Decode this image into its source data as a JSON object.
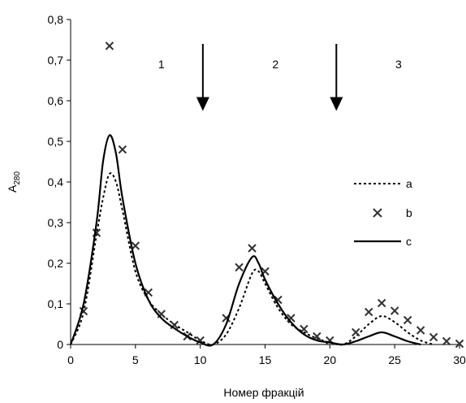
{
  "chart_data": {
    "type": "line",
    "xlabel": "Номер фракцій",
    "ylabel_main": "A",
    "ylabel_sub": "280",
    "xlim": [
      0,
      30
    ],
    "ylim": [
      0,
      0.8
    ],
    "x_ticks": [
      0,
      5,
      10,
      15,
      20,
      25,
      30
    ],
    "y_ticks": [
      "0",
      "0,1",
      "0,2",
      "0,3",
      "0,4",
      "0,5",
      "0,6",
      "0,7",
      "0,8"
    ],
    "grid": false,
    "legend_position": "right",
    "series": [
      {
        "name": "a",
        "style": "dotted-line",
        "color": "#000000",
        "points": [
          [
            0,
            0
          ],
          [
            1,
            0.08
          ],
          [
            2,
            0.27
          ],
          [
            2.5,
            0.36
          ],
          [
            3,
            0.42
          ],
          [
            3.5,
            0.4
          ],
          [
            4,
            0.33
          ],
          [
            5,
            0.18
          ],
          [
            6,
            0.11
          ],
          [
            7,
            0.075
          ],
          [
            8,
            0.05
          ],
          [
            9,
            0.03
          ],
          [
            10,
            0.01
          ],
          [
            11,
            0
          ],
          [
            12,
            0.025
          ],
          [
            13,
            0.09
          ],
          [
            14,
            0.175
          ],
          [
            14.5,
            0.18
          ],
          [
            15,
            0.15
          ],
          [
            16,
            0.09
          ],
          [
            17,
            0.05
          ],
          [
            18,
            0.03
          ],
          [
            19,
            0.015
          ],
          [
            20,
            0.005
          ],
          [
            21,
            0
          ],
          [
            22,
            0.02
          ],
          [
            23,
            0.05
          ],
          [
            24,
            0.07
          ],
          [
            25,
            0.055
          ],
          [
            26,
            0.03
          ],
          [
            27,
            0.01
          ],
          [
            28,
            0
          ]
        ]
      },
      {
        "name": "b",
        "style": "x-markers",
        "color": "#333333",
        "points": [
          [
            1,
            0.082
          ],
          [
            2,
            0.275
          ],
          [
            3,
            0.735
          ],
          [
            4,
            0.48
          ],
          [
            5,
            0.243
          ],
          [
            6,
            0.128
          ],
          [
            7,
            0.075
          ],
          [
            8,
            0.048
          ],
          [
            9,
            0.02
          ],
          [
            10,
            0.01
          ],
          [
            12,
            0.065
          ],
          [
            13,
            0.19
          ],
          [
            14,
            0.237
          ],
          [
            15,
            0.18
          ],
          [
            16,
            0.11
          ],
          [
            17,
            0.065
          ],
          [
            18,
            0.038
          ],
          [
            19,
            0.02
          ],
          [
            20,
            0.01
          ],
          [
            22,
            0.03
          ],
          [
            23,
            0.08
          ],
          [
            24,
            0.102
          ],
          [
            25,
            0.083
          ],
          [
            26,
            0.06
          ],
          [
            27,
            0.035
          ],
          [
            28,
            0.018
          ],
          [
            29,
            0.008
          ],
          [
            30,
            0.002
          ]
        ]
      },
      {
        "name": "c",
        "style": "solid-line",
        "color": "#000000",
        "points": [
          [
            0,
            0
          ],
          [
            1,
            0.1
          ],
          [
            2,
            0.3
          ],
          [
            2.5,
            0.45
          ],
          [
            3,
            0.515
          ],
          [
            3.5,
            0.47
          ],
          [
            4,
            0.36
          ],
          [
            5,
            0.2
          ],
          [
            6,
            0.11
          ],
          [
            7,
            0.065
          ],
          [
            8,
            0.04
          ],
          [
            9,
            0.02
          ],
          [
            10,
            0.005
          ],
          [
            11,
            0
          ],
          [
            12,
            0.05
          ],
          [
            13,
            0.15
          ],
          [
            14,
            0.215
          ],
          [
            14.5,
            0.2
          ],
          [
            15,
            0.16
          ],
          [
            16,
            0.1
          ],
          [
            17,
            0.055
          ],
          [
            18,
            0.025
          ],
          [
            19,
            0.01
          ],
          [
            20,
            0.005
          ],
          [
            21,
            0
          ],
          [
            22,
            0.008
          ],
          [
            23,
            0.02
          ],
          [
            24,
            0.03
          ],
          [
            25,
            0.02
          ],
          [
            26,
            0.008
          ],
          [
            27,
            0
          ]
        ]
      }
    ],
    "annotations": [
      {
        "label": "1",
        "x": 7,
        "y": 0.69
      },
      {
        "label": "2",
        "x": 15.8,
        "y": 0.69
      },
      {
        "label": "3",
        "x": 25.3,
        "y": 0.69
      }
    ],
    "arrows": [
      {
        "x": 10.2,
        "y_from": 0.74,
        "y_to": 0.575
      },
      {
        "x": 20.5,
        "y_from": 0.74,
        "y_to": 0.575
      }
    ]
  }
}
